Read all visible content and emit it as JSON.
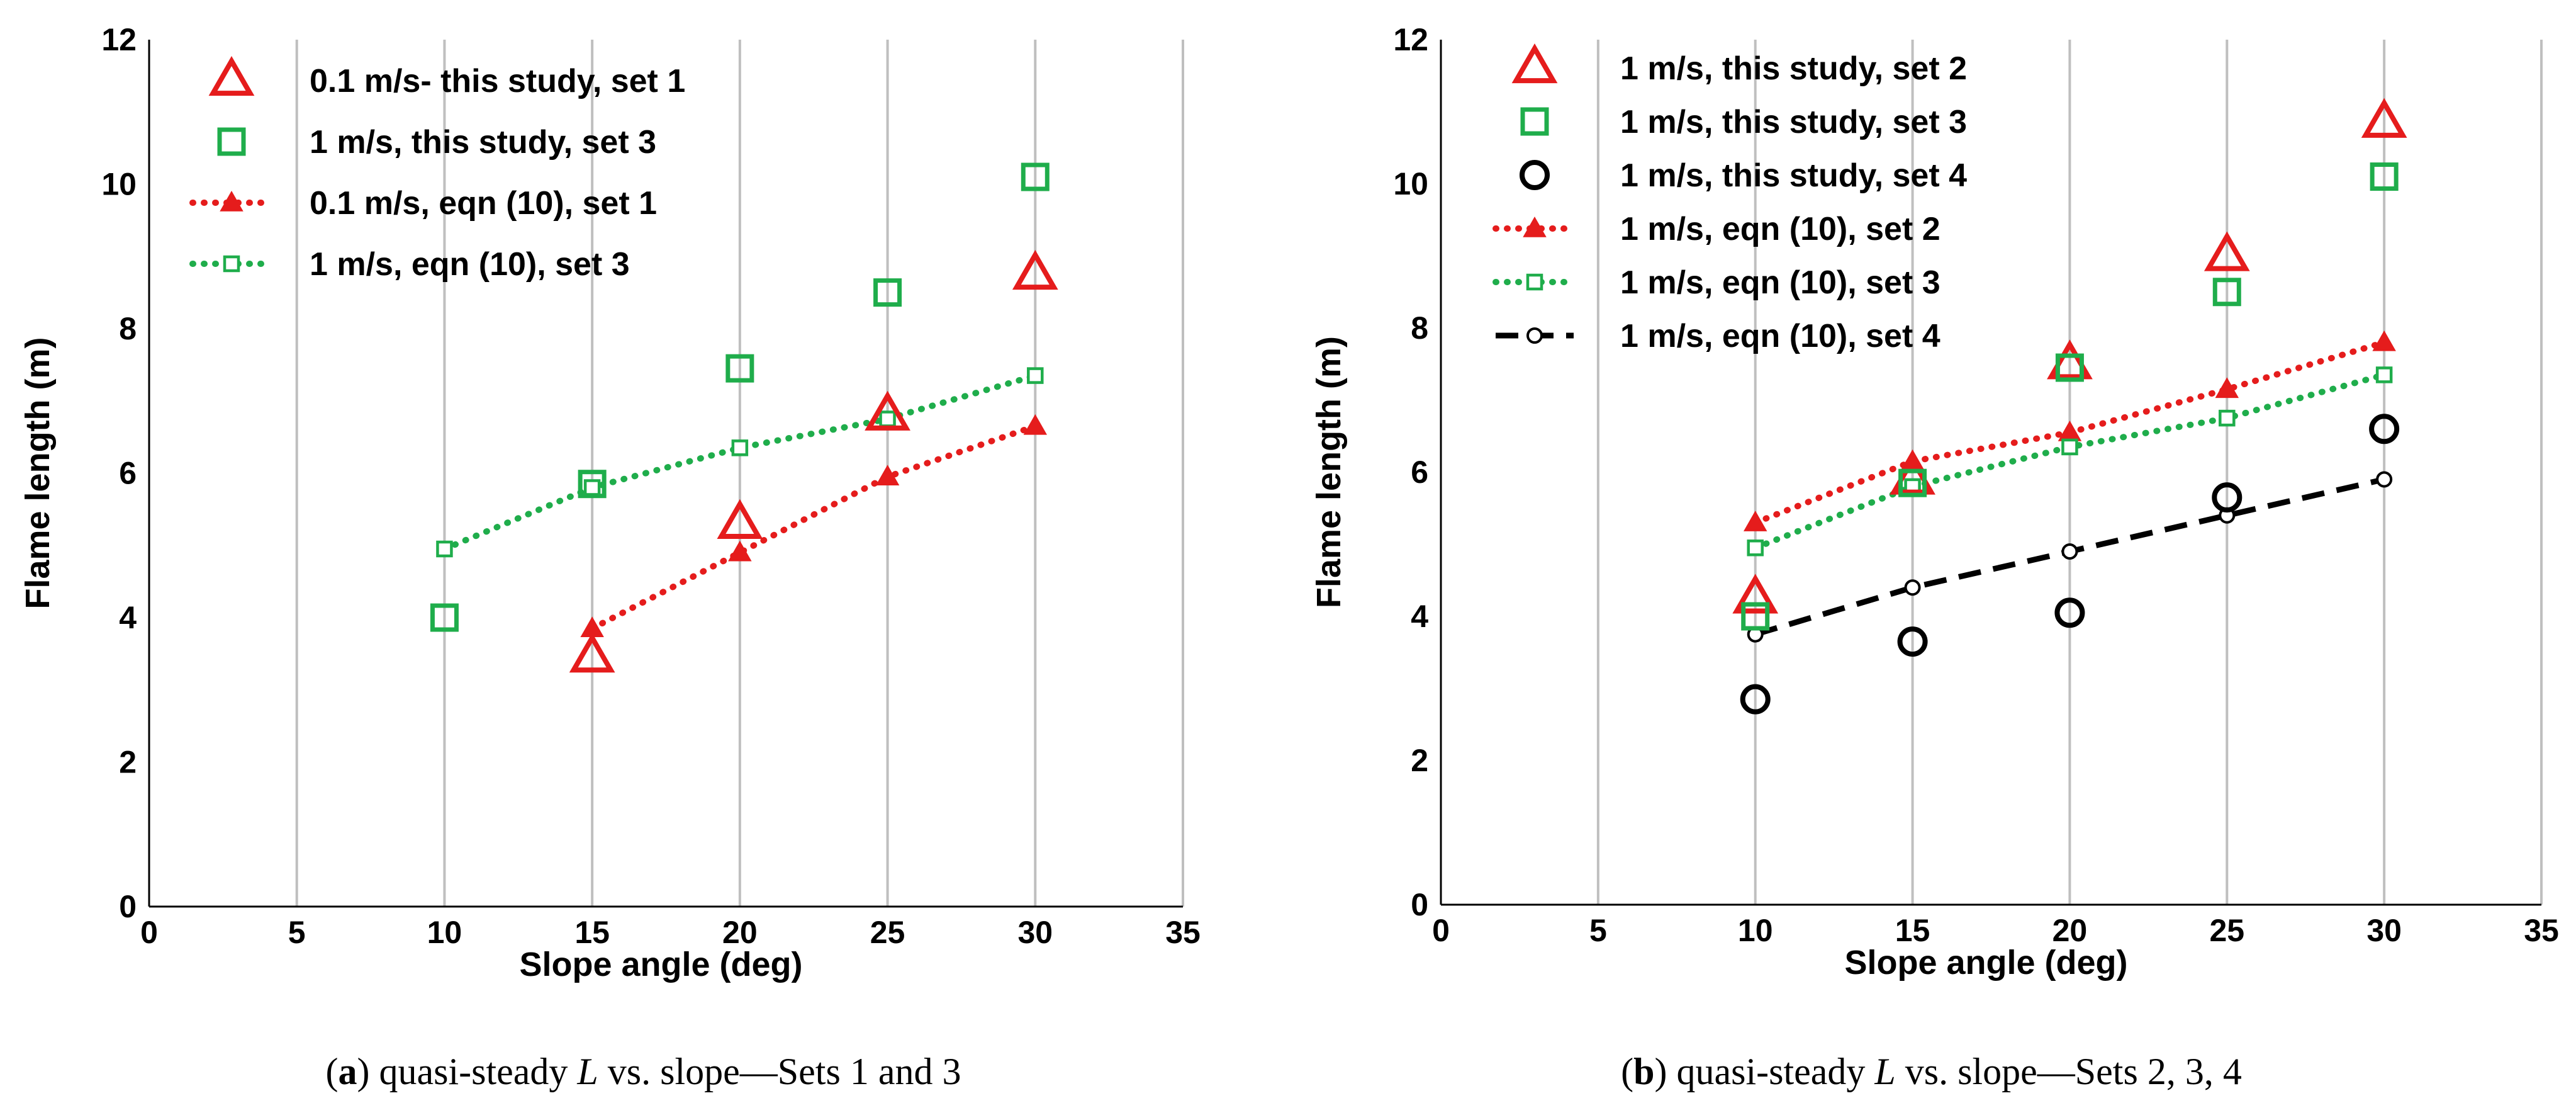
{
  "colors": {
    "red": "#e51c1c",
    "green": "#1fad4b",
    "black": "#000000",
    "grid": "#bfbfbf"
  },
  "chart_data": [
    {
      "type": "scatter",
      "caption": {
        "label": "a",
        "open": "(",
        "close": ")",
        "text_before": " quasi-steady ",
        "italic": "L",
        "text_after": " vs. slope—Sets 1 and 3"
      },
      "xlabel": "Slope angle (deg)",
      "ylabel": "Flame length  (m)",
      "xlim": [
        0,
        35
      ],
      "ylim": [
        0,
        12
      ],
      "xticks": [
        "0",
        "5",
        "10",
        "15",
        "20",
        "25",
        "30",
        "35"
      ],
      "yticks": [
        "0",
        "2",
        "4",
        "6",
        "8",
        "10",
        "12"
      ],
      "legend_position": "top-left",
      "series": [
        {
          "name": "0.1 m/s- this study, set 1",
          "color": "red",
          "marker": "triangle-open",
          "line": "none",
          "x": [
            15,
            20,
            25,
            30
          ],
          "y": [
            3.45,
            5.3,
            6.8,
            8.75
          ]
        },
        {
          "name": "1 m/s, this study, set 3",
          "color": "green",
          "marker": "square-open",
          "line": "none",
          "x": [
            10,
            15,
            20,
            25,
            30
          ],
          "y": [
            4.0,
            5.85,
            7.45,
            8.5,
            10.1
          ]
        },
        {
          "name": "0.1 m/s,  eqn (10), set 1",
          "color": "red",
          "marker": "triangle-filled",
          "line": "dotted",
          "x": [
            15,
            20,
            25,
            30
          ],
          "y": [
            3.85,
            4.9,
            5.95,
            6.65
          ]
        },
        {
          "name": "1 m/s,  eqn (10), set 3",
          "color": "green",
          "marker": "square-small",
          "line": "dotted",
          "x": [
            10,
            15,
            20,
            25,
            30
          ],
          "y": [
            4.95,
            5.8,
            6.35,
            6.75,
            7.35
          ]
        }
      ]
    },
    {
      "type": "scatter",
      "caption": {
        "label": "b",
        "open": "(",
        "close": ")",
        "text_before": " quasi-steady ",
        "italic": "L",
        "text_after": " vs. slope—Sets 2, 3, 4"
      },
      "xlabel": "Slope angle (deg)",
      "ylabel": "Flame length  (m)",
      "xlim": [
        0,
        35
      ],
      "ylim": [
        0,
        12
      ],
      "xticks": [
        "0",
        "5",
        "10",
        "15",
        "20",
        "25",
        "30",
        "35"
      ],
      "yticks": [
        "0",
        "2",
        "4",
        "6",
        "8",
        "10",
        "12"
      ],
      "legend_position": "top-left",
      "series": [
        {
          "name": "1 m/s, this study, set 2",
          "color": "red",
          "marker": "triangle-open",
          "line": "none",
          "x": [
            10,
            15,
            20,
            25,
            30
          ],
          "y": [
            4.25,
            5.9,
            7.5,
            9.0,
            10.85
          ]
        },
        {
          "name": "1 m/s, this study, set 3",
          "color": "green",
          "marker": "square-open",
          "line": "none",
          "x": [
            10,
            15,
            20,
            25,
            30
          ],
          "y": [
            4.0,
            5.85,
            7.45,
            8.5,
            10.1
          ]
        },
        {
          "name": "1 m/s, this study, set 4",
          "color": "black",
          "marker": "circle-open",
          "line": "none",
          "x": [
            10,
            15,
            20,
            25,
            30
          ],
          "y": [
            2.85,
            3.65,
            4.05,
            5.65,
            6.6
          ]
        },
        {
          "name": "1 m/s,  eqn (10), set 2",
          "color": "red",
          "marker": "triangle-filled",
          "line": "dotted",
          "x": [
            10,
            15,
            20,
            25,
            30
          ],
          "y": [
            5.3,
            6.15,
            6.55,
            7.15,
            7.8
          ]
        },
        {
          "name": "1 m/s,  eqn (10), set 3",
          "color": "green",
          "marker": "square-small",
          "line": "dotted",
          "x": [
            10,
            15,
            20,
            25,
            30
          ],
          "y": [
            4.95,
            5.8,
            6.35,
            6.75,
            7.35
          ]
        },
        {
          "name": "1 m/s,  eqn (10), set 4",
          "color": "black",
          "marker": "circle-small",
          "line": "dashed",
          "x": [
            10,
            15,
            20,
            25,
            30
          ],
          "y": [
            3.75,
            4.4,
            4.9,
            5.4,
            5.9
          ]
        }
      ]
    }
  ]
}
